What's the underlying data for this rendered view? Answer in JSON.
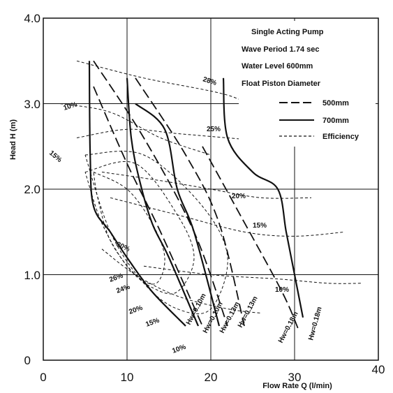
{
  "chart_data": {
    "type": "line",
    "title": "",
    "xlabel": "Flow Rate Q (l/min)",
    "ylabel": "Head H (m)",
    "xlim": [
      0,
      40
    ],
    "ylim": [
      0,
      4.0
    ],
    "x_ticks": [
      "0",
      "10",
      "20",
      "30",
      "40"
    ],
    "y_ticks": [
      "0",
      "1.0",
      "2.0",
      "3.0",
      "4.0"
    ],
    "grid": true,
    "legend_block": {
      "lines": [
        "Single Acting Pump",
        "Wave Period 1.74 sec",
        "Water Level 600mm",
        "Float Piston Diameter"
      ],
      "entries": [
        {
          "label": "500mm",
          "style": "dashed"
        },
        {
          "label": "700mm",
          "style": "solid"
        },
        {
          "label": "Efficiency",
          "style": "dotted"
        }
      ]
    },
    "series": [
      {
        "name": "Hw=0.10m",
        "diameter": "700mm",
        "points": [
          [
            5.5,
            3.5
          ],
          [
            5.6,
            2.4
          ],
          [
            6,
            1.8
          ],
          [
            8,
            1.5
          ],
          [
            10,
            1.2
          ],
          [
            13,
            0.8
          ],
          [
            17,
            0.4
          ]
        ]
      },
      {
        "name": "Hw=0.10m",
        "diameter": "500mm",
        "points": [
          [
            6,
            3.2
          ],
          [
            10,
            2.3
          ],
          [
            14,
            1.5
          ],
          [
            19,
            0.4
          ]
        ]
      },
      {
        "name": "Hw=0.10m",
        "diameter": "700mm",
        "points": [
          [
            10,
            3.3
          ],
          [
            10.5,
            2.6
          ],
          [
            11.5,
            2.1
          ],
          [
            13,
            1.6
          ],
          [
            15,
            1.2
          ],
          [
            18.5,
            0.4
          ]
        ]
      },
      {
        "name": "Hw=0.13m",
        "diameter": "500mm",
        "points": [
          [
            6,
            3.5
          ],
          [
            12,
            2.6
          ],
          [
            18,
            1.5
          ],
          [
            22,
            0.4
          ]
        ]
      },
      {
        "name": "Hw=0.13m",
        "diameter": "700mm",
        "points": [
          [
            11,
            3.0
          ],
          [
            14.5,
            2.7
          ],
          [
            16,
            2.0
          ],
          [
            18,
            1.5
          ],
          [
            21,
            0.4
          ]
        ]
      },
      {
        "name": "Hw=0.13m",
        "diameter": "500mm",
        "points": [
          [
            11,
            3.3
          ],
          [
            17,
            2.4
          ],
          [
            21,
            1.6
          ],
          [
            24,
            0.4
          ]
        ]
      },
      {
        "name": "Hw=0.18m",
        "diameter": "500mm",
        "points": [
          [
            19,
            2.5
          ],
          [
            23.5,
            1.7
          ],
          [
            28.5,
            0.8
          ],
          [
            30.5,
            0.35
          ]
        ]
      },
      {
        "name": "Hw=0.18m",
        "diameter": "700mm",
        "points": [
          [
            21.5,
            3.3
          ],
          [
            22,
            2.6
          ],
          [
            25,
            2.2
          ],
          [
            28,
            2.0
          ],
          [
            29,
            1.5
          ],
          [
            30,
            1.0
          ],
          [
            31,
            0.5
          ]
        ]
      }
    ],
    "efficiency_labels": [
      "28%",
      "25%",
      "20%",
      "15%",
      "10%",
      "10%",
      "15%",
      "30%",
      "26%",
      "24%",
      "20%",
      "15%",
      "10%"
    ]
  }
}
